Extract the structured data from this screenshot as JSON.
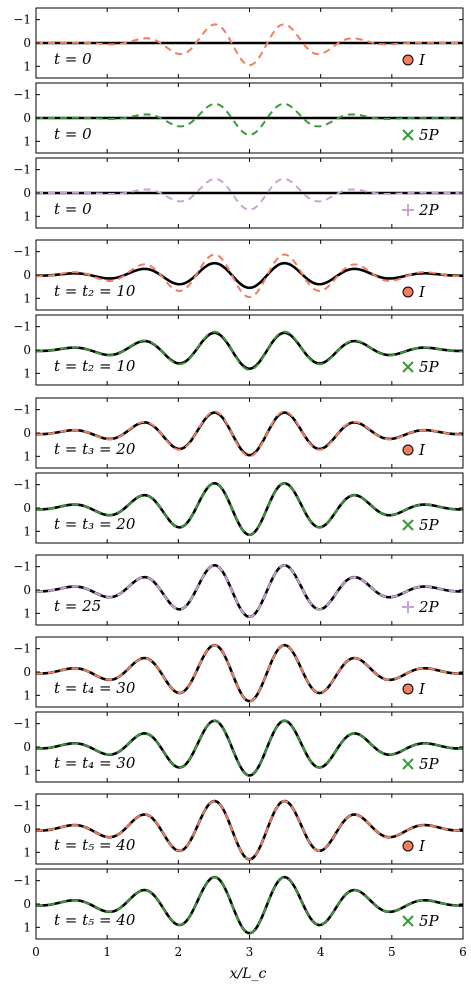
{
  "chart_data": {
    "type": "line",
    "title": "",
    "xlabel": "x/L_c",
    "xlim": [
      0,
      6
    ],
    "xticks": [
      "0",
      "1",
      "2",
      "3",
      "4",
      "5",
      "6"
    ],
    "ylim": [
      -1.5,
      1.5
    ],
    "yticks": [
      "−1",
      "0",
      "1"
    ],
    "grid": false,
    "legend": "none",
    "colors": {
      "black": "#000000",
      "I": "#ef7f5f",
      "5P": "#3a9a3a",
      "2P": "#c9a3d6"
    },
    "panels": [
      {
        "label": "t = 0",
        "marker": "circle",
        "marker_label": "I",
        "dashed_color": "#ef7f5f",
        "dashed_amp": 0.95,
        "solid_amp": 0.0
      },
      {
        "label": "t = 0",
        "marker": "cross",
        "marker_label": "5P",
        "dashed_color": "#3a9a3a",
        "dashed_amp": 0.72,
        "solid_amp": 0.0
      },
      {
        "label": "t = 0",
        "marker": "plus",
        "marker_label": "2P",
        "dashed_color": "#c9a3d6",
        "dashed_amp": 0.72,
        "solid_amp": 0.0
      },
      {
        "label": "t = t₂ = 10",
        "marker": "circle",
        "marker_label": "I",
        "dashed_color": "#ef7f5f",
        "dashed_amp": 0.95,
        "solid_amp": 0.55
      },
      {
        "label": "t = t₂ = 10",
        "marker": "cross",
        "marker_label": "5P",
        "dashed_color": "#3a9a3a",
        "dashed_amp": 0.85,
        "solid_amp": 0.8
      },
      {
        "label": "t = t₃ = 20",
        "marker": "circle",
        "marker_label": "I",
        "dashed_color": "#ef7f5f",
        "dashed_amp": 1.0,
        "solid_amp": 0.95
      },
      {
        "label": "t = t₃ = 20",
        "marker": "cross",
        "marker_label": "5P",
        "dashed_color": "#3a9a3a",
        "dashed_amp": 1.15,
        "solid_amp": 1.15
      },
      {
        "label": "t = 25",
        "marker": "plus",
        "marker_label": "2P",
        "dashed_color": "#c9a3d6",
        "dashed_amp": 1.15,
        "solid_amp": 1.15
      },
      {
        "label": "t = t₄ = 30",
        "marker": "circle",
        "marker_label": "I",
        "dashed_color": "#ef7f5f",
        "dashed_amp": 1.25,
        "solid_amp": 1.25
      },
      {
        "label": "t = t₄ = 30",
        "marker": "cross",
        "marker_label": "5P",
        "dashed_color": "#3a9a3a",
        "dashed_amp": 1.22,
        "solid_amp": 1.22
      },
      {
        "label": "t = t₅ = 40",
        "marker": "circle",
        "marker_label": "I",
        "dashed_color": "#ef7f5f",
        "dashed_amp": 1.3,
        "solid_amp": 1.3
      },
      {
        "label": "t = t₅ = 40",
        "marker": "cross",
        "marker_label": "5P",
        "dashed_color": "#3a9a3a",
        "dashed_amp": 1.25,
        "solid_amp": 1.25
      }
    ]
  }
}
